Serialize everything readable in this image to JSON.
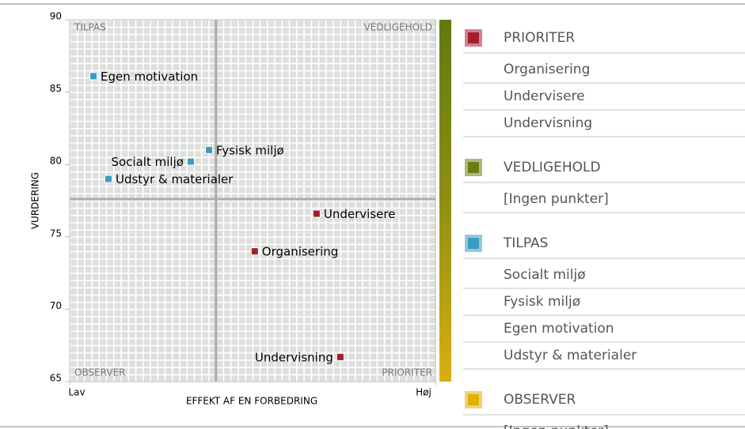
{
  "chart_data": {
    "type": "scatter",
    "x_label": "EFFEKT AF EN FORBEDRING",
    "y_label": "VURDERING",
    "xlim": [
      0,
      100
    ],
    "xticks": [
      {
        "value": 0,
        "label": "Lav"
      },
      {
        "value": 100,
        "label": "Høj"
      }
    ],
    "ylim": [
      65,
      90
    ],
    "yticks": [
      65,
      70,
      75,
      80,
      85,
      90
    ],
    "grid": true,
    "quadrant_split": {
      "x": 40,
      "y": 77.6
    },
    "quadrant_labels": {
      "top_left": "TILPAS",
      "top_right": "VEDLIGEHOLD",
      "bottom_left": "OBSERVER",
      "bottom_right": "PRIORITER"
    },
    "series": [
      {
        "name": "PRIORITER",
        "color": "#a51d2d",
        "labels": [
          "Organisering",
          "Undervisere",
          "Undervisning"
        ],
        "x": [
          50.6,
          67.5,
          74.0
        ],
        "values": [
          74.0,
          76.6,
          66.7
        ]
      },
      {
        "name": "VEDLIGEHOLD",
        "color": "#6b7d12",
        "labels": [],
        "x": [],
        "values": [],
        "note": "[Ingen punkter]"
      },
      {
        "name": "TILPAS",
        "color": "#3e9bc0",
        "labels": [
          "Socialt miljø",
          "Fysisk miljø",
          "Egen motivation",
          "Udstyr & materialer"
        ],
        "x": [
          33.1,
          38.1,
          6.5,
          10.6
        ],
        "values": [
          80.2,
          81.0,
          86.1,
          79.0
        ]
      },
      {
        "name": "OBSERVER",
        "color": "#e0b000",
        "labels": [],
        "x": [],
        "values": [],
        "note": "[Ingen punkter]"
      }
    ]
  }
}
